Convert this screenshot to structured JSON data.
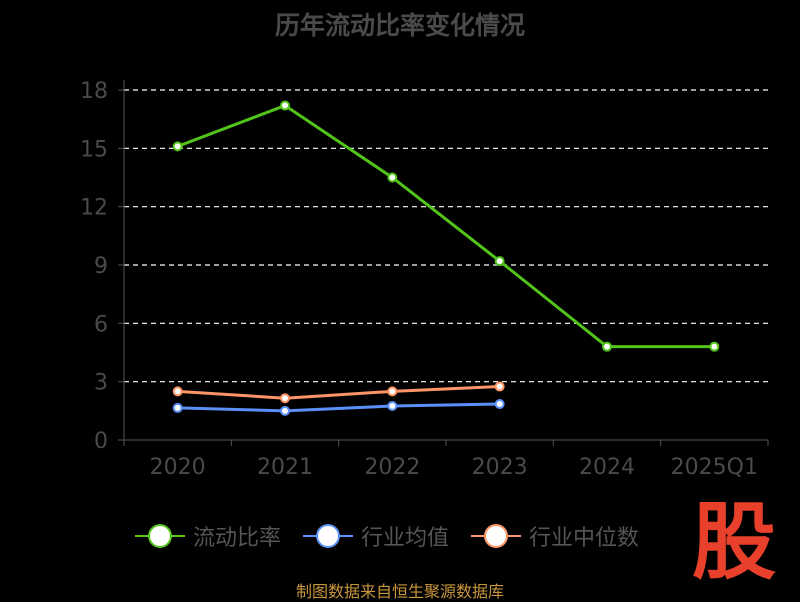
{
  "title": "历年流动比率变化情况",
  "chart_data": {
    "type": "line",
    "categories": [
      "2020",
      "2021",
      "2022",
      "2023",
      "2024",
      "2025Q1"
    ],
    "y_ticks": [
      0,
      3,
      6,
      9,
      12,
      15,
      18
    ],
    "ylim": [
      0,
      18
    ],
    "grid": true,
    "legend_position": "bottom",
    "series": [
      {
        "name": "流动比率",
        "color": "#52c41a",
        "values": [
          15.1,
          17.2,
          13.5,
          9.2,
          4.8,
          4.8
        ]
      },
      {
        "name": "行业均值",
        "color": "#5b8ff9",
        "values": [
          1.65,
          1.5,
          1.75,
          1.85,
          null,
          null
        ]
      },
      {
        "name": "行业中位数",
        "color": "#ff9466",
        "values": [
          2.5,
          2.15,
          2.5,
          2.75,
          null,
          null
        ]
      }
    ]
  },
  "logo_text": "股",
  "source": "制图数据来自恒生聚源数据库"
}
